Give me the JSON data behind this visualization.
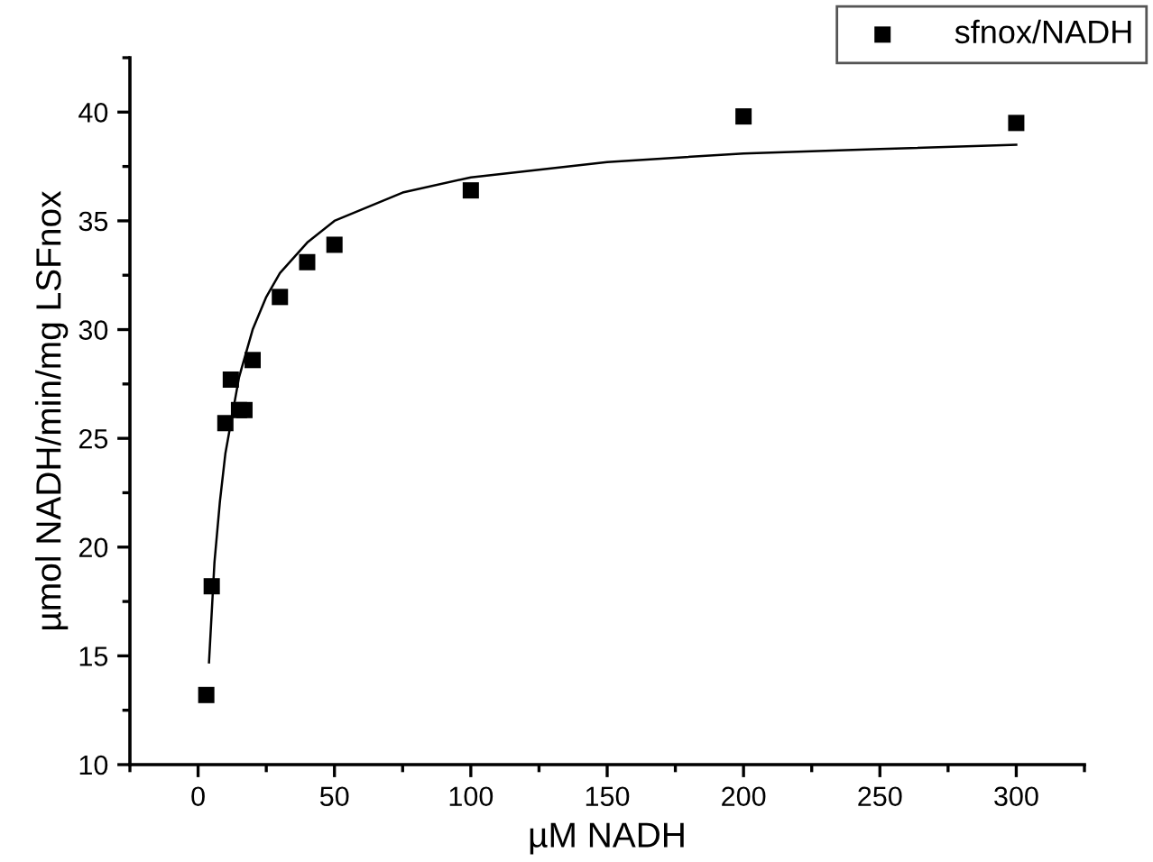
{
  "chart_data": {
    "type": "scatter",
    "xlabel": "µM NADH",
    "ylabel": "µmol NADH/min/mg LSFnox",
    "xlim": [
      -25,
      325
    ],
    "ylim": [
      10,
      42.5
    ],
    "xticks": [
      0,
      50,
      100,
      150,
      200,
      250,
      300
    ],
    "yticks": [
      10,
      15,
      20,
      25,
      30,
      35,
      40
    ],
    "marker": "square",
    "legend": "top right",
    "grid": false,
    "series": [
      {
        "name": "sfnox/NADH",
        "color": "#000000",
        "x": [
          3,
          5,
          10,
          12,
          15,
          17,
          20,
          30,
          40,
          50,
          100,
          200,
          300
        ],
        "values": [
          13.2,
          18.2,
          25.7,
          27.7,
          26.3,
          26.3,
          28.6,
          31.5,
          33.1,
          33.9,
          36.4,
          39.8,
          39.5
        ]
      },
      {
        "type": "line",
        "marker": "none",
        "color": "#000000",
        "x": [
          4,
          6,
          8,
          10,
          15,
          20,
          25,
          30,
          40,
          50,
          75,
          100,
          150,
          200,
          250,
          300
        ],
        "values": [
          14.7,
          19.3,
          22.1,
          24.3,
          27.8,
          30.0,
          31.5,
          32.6,
          34.0,
          35.0,
          36.3,
          37.0,
          37.7,
          38.1,
          38.3,
          38.5
        ]
      }
    ]
  }
}
